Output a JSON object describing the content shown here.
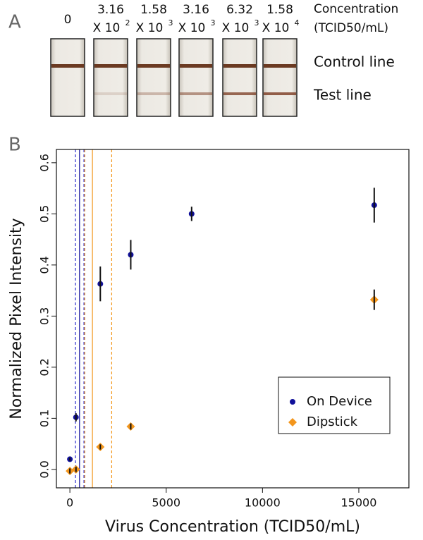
{
  "panel_a": {
    "label": "A",
    "concentrations": [
      [
        "0"
      ],
      [
        "3.16",
        "X 10",
        "2"
      ],
      [
        "1.58",
        "X 10",
        "3"
      ],
      [
        "3.16",
        "X 10",
        "3"
      ],
      [
        "6.32",
        "X 10",
        "3"
      ],
      [
        "1.58",
        "X 10",
        "4"
      ]
    ],
    "concentration_title": [
      "Concentration",
      "(TCID50/mL)"
    ],
    "control_line": "Control line",
    "test_line": "Test line"
  },
  "chart_data": {
    "type": "scatter",
    "panel_label": "B",
    "x_label": "Virus Concentration (TCID50/mL)",
    "y_label": "Normalized Pixel Intensity",
    "xlim": [
      -700,
      17600
    ],
    "ylim": [
      -0.036,
      0.626
    ],
    "xticks": [
      0,
      5000,
      10000,
      15000
    ],
    "yticks": [
      {
        "value": 0,
        "label": "0.0"
      },
      0.1,
      0.2,
      0.3,
      0.4,
      0.5,
      0.6
    ],
    "legend": "right",
    "series": [
      {
        "name": "On Device",
        "color": "#10109a",
        "marker": "circle",
        "x": [
          0,
          316,
          1580,
          3160,
          6320,
          15800
        ],
        "values": [
          0.02,
          0.102,
          0.363,
          0.42,
          0.5,
          0.517
        ],
        "errors": [
          0.003,
          0.008,
          0.034,
          0.029,
          0.014,
          0.034
        ]
      },
      {
        "name": "Dipstick",
        "color": "#f3961c",
        "marker": "diamond",
        "x": [
          0,
          316,
          1580,
          3160,
          15800
        ],
        "values": [
          -0.003,
          0.0,
          0.044,
          0.084,
          0.332
        ],
        "errors": [
          0.005,
          0.005,
          0.005,
          0.006,
          0.02
        ]
      }
    ],
    "vlines": [
      {
        "x": 290,
        "color": "#3030d0",
        "style": "dashed"
      },
      {
        "x": 500,
        "color": "#10109a",
        "style": "solid"
      },
      {
        "x": 730,
        "color": "#3030d0",
        "style": "dashed"
      },
      {
        "x": 770,
        "color": "#f3961c",
        "style": "dashed"
      },
      {
        "x": 1170,
        "color": "#f3961c",
        "style": "solid"
      },
      {
        "x": 2170,
        "color": "#f3961c",
        "style": "dashed"
      }
    ]
  }
}
